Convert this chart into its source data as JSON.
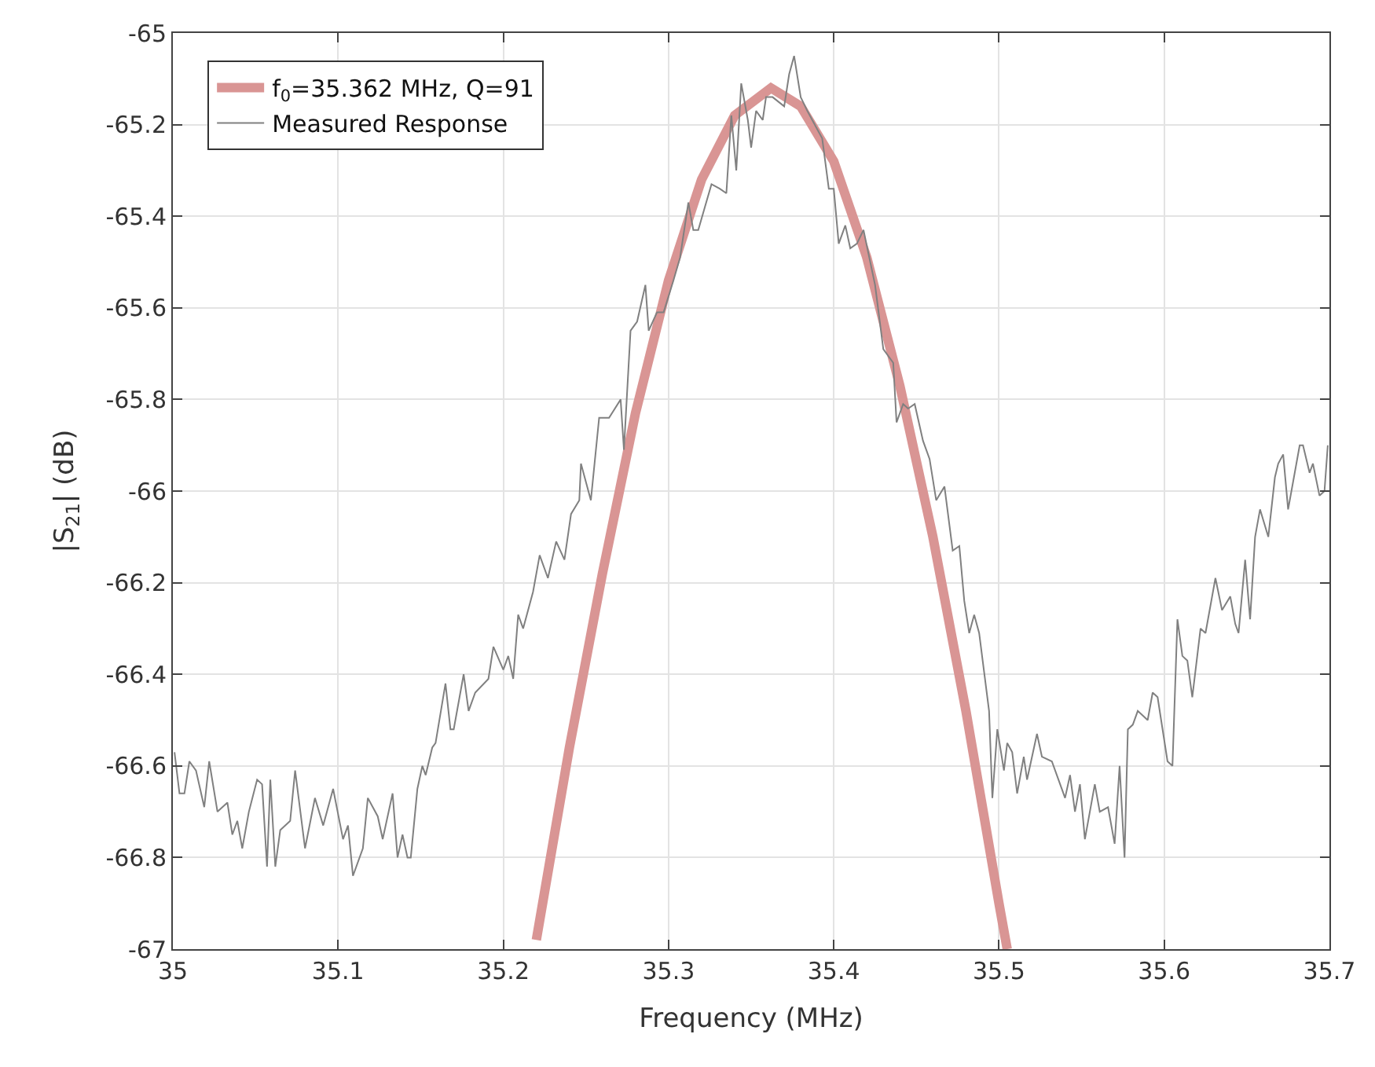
{
  "chart_data": {
    "type": "line",
    "xlabel": "Frequency (MHz)",
    "ylabel": "|S$_{21}$| (dB)",
    "xlim": [
      35,
      35.7
    ],
    "xticks": [
      35,
      35.1,
      35.2,
      35.3,
      35.4,
      35.5,
      35.6,
      35.7
    ],
    "ylim": [
      -67,
      -65
    ],
    "yticks": [
      -67,
      -66.8,
      -66.6,
      -66.4,
      -66.2,
      -66,
      -65.8,
      -65.6,
      -65.4,
      -65.2,
      -65
    ],
    "grid": true,
    "legend": "top left",
    "marker": "none",
    "series": [
      {
        "name": "f$_{0}$=35.362 MHz, Q=91",
        "color": "#d99594",
        "line_style": "solid",
        "x": [
          35.22,
          35.24,
          35.26,
          35.28,
          35.3,
          35.32,
          35.34,
          35.362,
          35.38,
          35.4,
          35.42,
          35.44,
          35.46,
          35.48,
          35.5,
          35.505
        ],
        "values": [
          -66.98,
          -66.56,
          -66.18,
          -65.83,
          -65.54,
          -65.32,
          -65.18,
          -65.12,
          -65.16,
          -65.28,
          -65.49,
          -65.77,
          -66.1,
          -66.48,
          -66.9,
          -67.0
        ]
      },
      {
        "name": "Measured Response",
        "color": "#808080",
        "line_style": "solid",
        "x": [
          35.001,
          35.004,
          35.007,
          35.01,
          35.014,
          35.019,
          35.022,
          35.027,
          35.033,
          35.036,
          35.039,
          35.042,
          35.046,
          35.051,
          35.054,
          35.057,
          35.059,
          35.062,
          35.065,
          35.071,
          35.074,
          35.08,
          35.086,
          35.091,
          35.097,
          35.103,
          35.106,
          35.109,
          35.115,
          35.118,
          35.124,
          35.127,
          35.133,
          35.136,
          35.139,
          35.142,
          35.144,
          35.148,
          35.151,
          35.153,
          35.157,
          35.159,
          35.165,
          35.168,
          35.17,
          35.176,
          35.179,
          35.183,
          35.191,
          35.194,
          35.2,
          35.203,
          35.206,
          35.209,
          35.212,
          35.218,
          35.222,
          35.227,
          35.232,
          35.237,
          35.241,
          35.246,
          35.247,
          35.253,
          35.258,
          35.264,
          35.271,
          35.273,
          35.277,
          35.281,
          35.286,
          35.288,
          35.293,
          35.297,
          35.303,
          35.307,
          35.312,
          35.315,
          35.318,
          35.322,
          35.326,
          35.331,
          35.335,
          35.338,
          35.341,
          35.344,
          35.348,
          35.35,
          35.353,
          35.357,
          35.359,
          35.363,
          35.37,
          35.373,
          35.376,
          35.38,
          35.384,
          35.39,
          35.393,
          35.397,
          35.4,
          35.403,
          35.407,
          35.41,
          35.414,
          35.418,
          35.425,
          35.43,
          35.436,
          35.438,
          35.442,
          35.445,
          35.449,
          35.454,
          35.458,
          35.462,
          35.467,
          35.472,
          35.476,
          35.479,
          35.482,
          35.485,
          35.488,
          35.494,
          35.496,
          35.499,
          35.503,
          35.505,
          35.508,
          35.511,
          35.515,
          35.517,
          35.523,
          35.526,
          35.532,
          35.538,
          35.54,
          35.543,
          35.546,
          35.549,
          35.552,
          35.558,
          35.561,
          35.566,
          35.57,
          35.573,
          35.576,
          35.578,
          35.581,
          35.584,
          35.59,
          35.593,
          35.596,
          35.602,
          35.605,
          35.608,
          35.611,
          35.614,
          35.617,
          35.622,
          35.625,
          35.631,
          35.635,
          35.64,
          35.643,
          35.645,
          35.649,
          35.652,
          35.655,
          35.658,
          35.663,
          35.667,
          35.669,
          35.672,
          35.675,
          35.682,
          35.684,
          35.688,
          35.69,
          35.694,
          35.697,
          35.699
        ],
        "values": [
          -66.57,
          -66.66,
          -66.66,
          -66.59,
          -66.61,
          -66.69,
          -66.59,
          -66.7,
          -66.68,
          -66.75,
          -66.72,
          -66.78,
          -66.7,
          -66.63,
          -66.64,
          -66.82,
          -66.63,
          -66.82,
          -66.74,
          -66.72,
          -66.61,
          -66.78,
          -66.67,
          -66.73,
          -66.65,
          -66.76,
          -66.73,
          -66.84,
          -66.78,
          -66.67,
          -66.71,
          -66.76,
          -66.66,
          -66.8,
          -66.75,
          -66.8,
          -66.8,
          -66.65,
          -66.6,
          -66.62,
          -66.56,
          -66.55,
          -66.42,
          -66.52,
          -66.52,
          -66.4,
          -66.48,
          -66.44,
          -66.41,
          -66.34,
          -66.39,
          -66.36,
          -66.41,
          -66.27,
          -66.3,
          -66.22,
          -66.14,
          -66.19,
          -66.11,
          -66.15,
          -66.05,
          -66.02,
          -65.94,
          -66.02,
          -65.84,
          -65.84,
          -65.8,
          -65.91,
          -65.65,
          -65.63,
          -65.55,
          -65.65,
          -65.61,
          -65.61,
          -65.54,
          -65.49,
          -65.37,
          -65.43,
          -65.43,
          -65.38,
          -65.33,
          -65.34,
          -65.35,
          -65.18,
          -65.3,
          -65.11,
          -65.19,
          -65.25,
          -65.17,
          -65.19,
          -65.14,
          -65.14,
          -65.16,
          -65.09,
          -65.05,
          -65.14,
          -65.17,
          -65.21,
          -65.23,
          -65.34,
          -65.34,
          -65.46,
          -65.42,
          -65.47,
          -65.46,
          -65.43,
          -65.55,
          -65.69,
          -65.72,
          -65.85,
          -65.81,
          -65.82,
          -65.81,
          -65.89,
          -65.93,
          -66.02,
          -65.99,
          -66.13,
          -66.12,
          -66.24,
          -66.31,
          -66.27,
          -66.31,
          -66.48,
          -66.67,
          -66.52,
          -66.61,
          -66.55,
          -66.57,
          -66.66,
          -66.58,
          -66.63,
          -66.53,
          -66.58,
          -66.59,
          -66.65,
          -66.67,
          -66.62,
          -66.7,
          -66.64,
          -66.76,
          -66.64,
          -66.7,
          -66.69,
          -66.77,
          -66.6,
          -66.8,
          -66.52,
          -66.51,
          -66.48,
          -66.5,
          -66.44,
          -66.45,
          -66.59,
          -66.6,
          -66.28,
          -66.36,
          -66.37,
          -66.45,
          -66.3,
          -66.31,
          -66.19,
          -66.26,
          -66.23,
          -66.29,
          -66.31,
          -66.15,
          -66.28,
          -66.1,
          -66.04,
          -66.1,
          -65.97,
          -65.94,
          -65.92,
          -66.04,
          -65.9,
          -65.9,
          -65.96,
          -65.94,
          -66.01,
          -66.0,
          -65.9
        ]
      }
    ]
  }
}
